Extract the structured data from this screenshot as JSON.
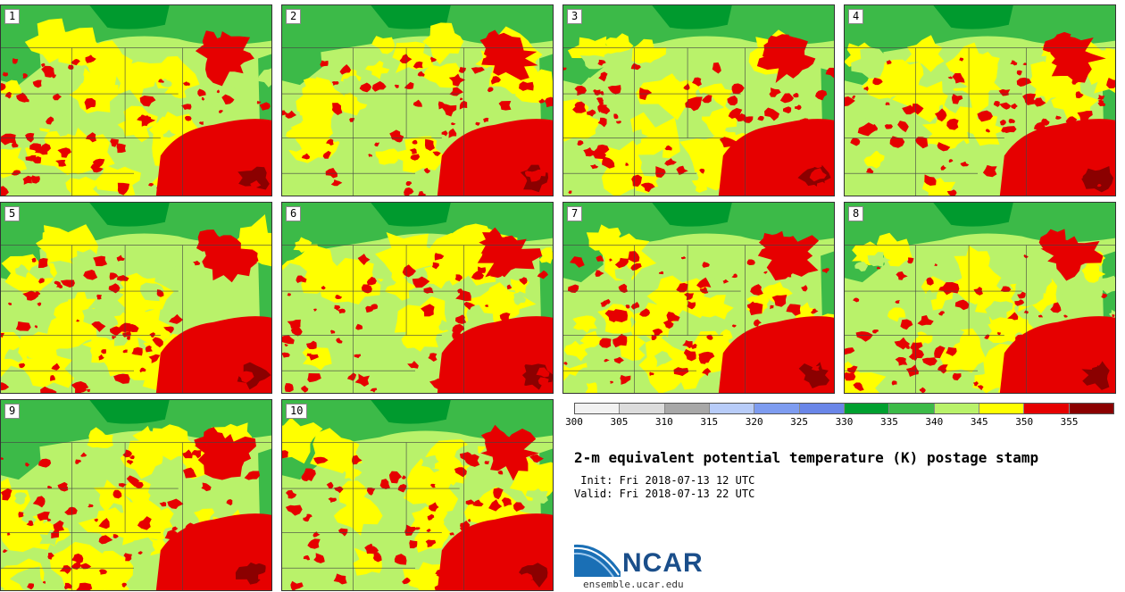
{
  "panels": [
    {
      "label": "1"
    },
    {
      "label": "2"
    },
    {
      "label": "3"
    },
    {
      "label": "4"
    },
    {
      "label": "5"
    },
    {
      "label": "6"
    },
    {
      "label": "7"
    },
    {
      "label": "8"
    },
    {
      "label": "9"
    },
    {
      "label": "10"
    }
  ],
  "colorbar": {
    "colors": [
      "#f2f2f2",
      "#dcdcdc",
      "#a8a8a8",
      "#b8ccf8",
      "#7e9cf0",
      "#6a86e8",
      "#00a030",
      "#3cba48",
      "#b9f26a",
      "#ffff00",
      "#e60000",
      "#8b0000"
    ],
    "ticks": [
      "300",
      "305",
      "310",
      "315",
      "320",
      "325",
      "330",
      "335",
      "340",
      "345",
      "350",
      "355"
    ]
  },
  "map_colors": {
    "dark_green": "#009a2e",
    "green": "#3cba48",
    "light_green": "#b9f26a",
    "yellow": "#ffff00",
    "red": "#e60000",
    "dark_red": "#8b0000"
  },
  "title": "2-m equivalent potential temperature (K) postage stamp",
  "init": " Init: Fri 2018-07-13 12 UTC",
  "valid": "Valid: Fri 2018-07-13 22 UTC",
  "logo_text": "NCAR",
  "url": "ensemble.ucar.edu"
}
